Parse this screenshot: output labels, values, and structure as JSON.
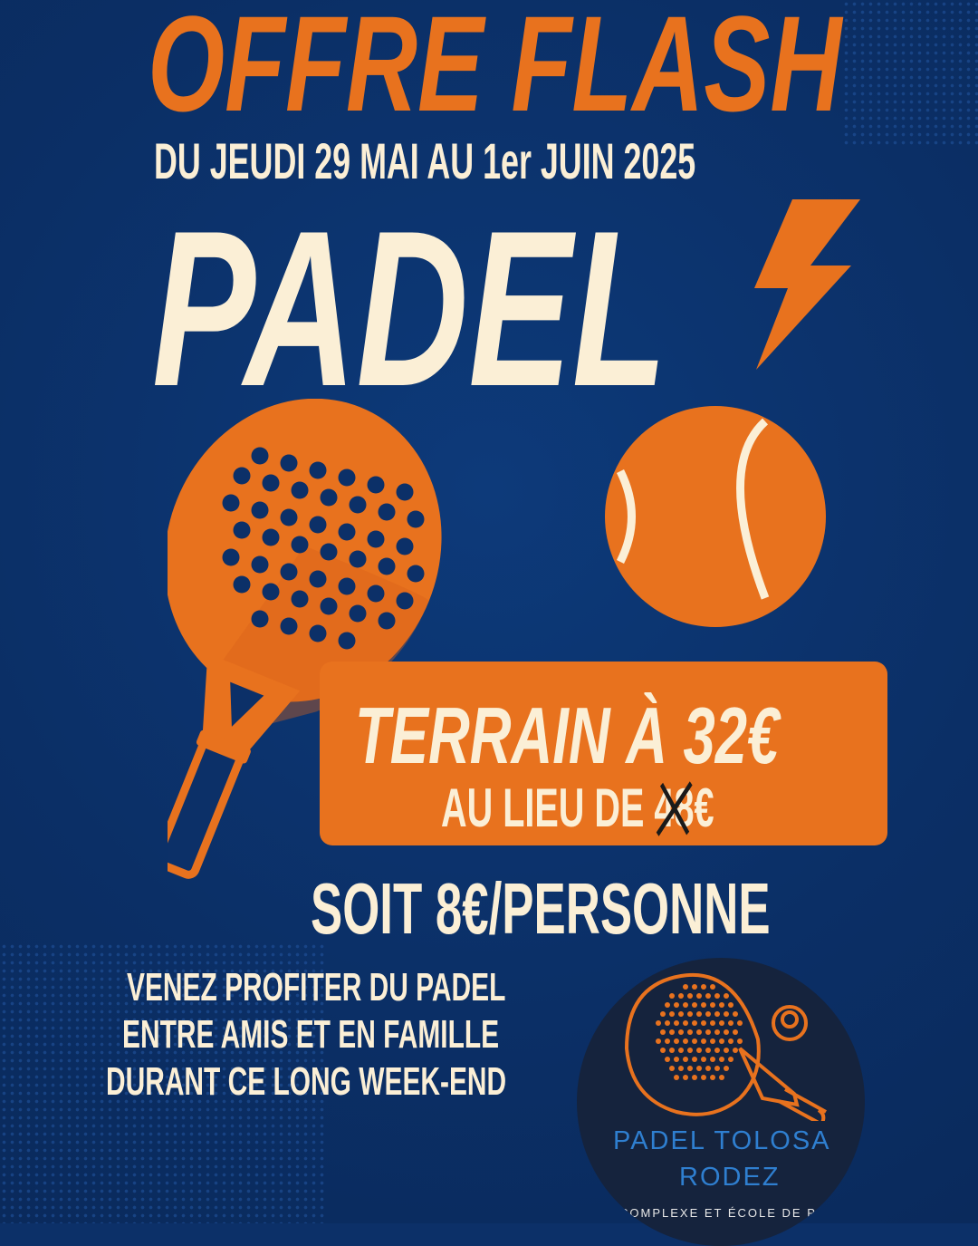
{
  "headline": "OFFRE FLASH",
  "dates": "DU JEUDI 29 MAI AU 1er JUIN 2025",
  "sport": "PADEL",
  "offer": {
    "price_line": "TERRAIN À 32€",
    "old_prefix": "AU LIEU DE ",
    "old_price": "48",
    "old_currency": "€",
    "per_person": "SOIT 8€/PERSONNE"
  },
  "message": [
    "VENEZ PROFITER DU PADEL",
    "ENTRE AMIS ET EN FAMILLE",
    "DURANT CE LONG WEEK-END"
  ],
  "logo": {
    "name_line1": "PADEL TOLOSA",
    "name_line2": "RODEZ",
    "tagline": "COMPLEXE ET ÉCOLE DE PADEL"
  },
  "colors": {
    "background": "#0c3068",
    "orange": "#e8721e",
    "cream": "#fbefd6",
    "logo_bg": "#15233d",
    "logo_text": "#2f7fd0"
  },
  "icons": [
    "lightning-icon",
    "padel-racket-icon",
    "ball-icon",
    "logo-racket-icon"
  ]
}
